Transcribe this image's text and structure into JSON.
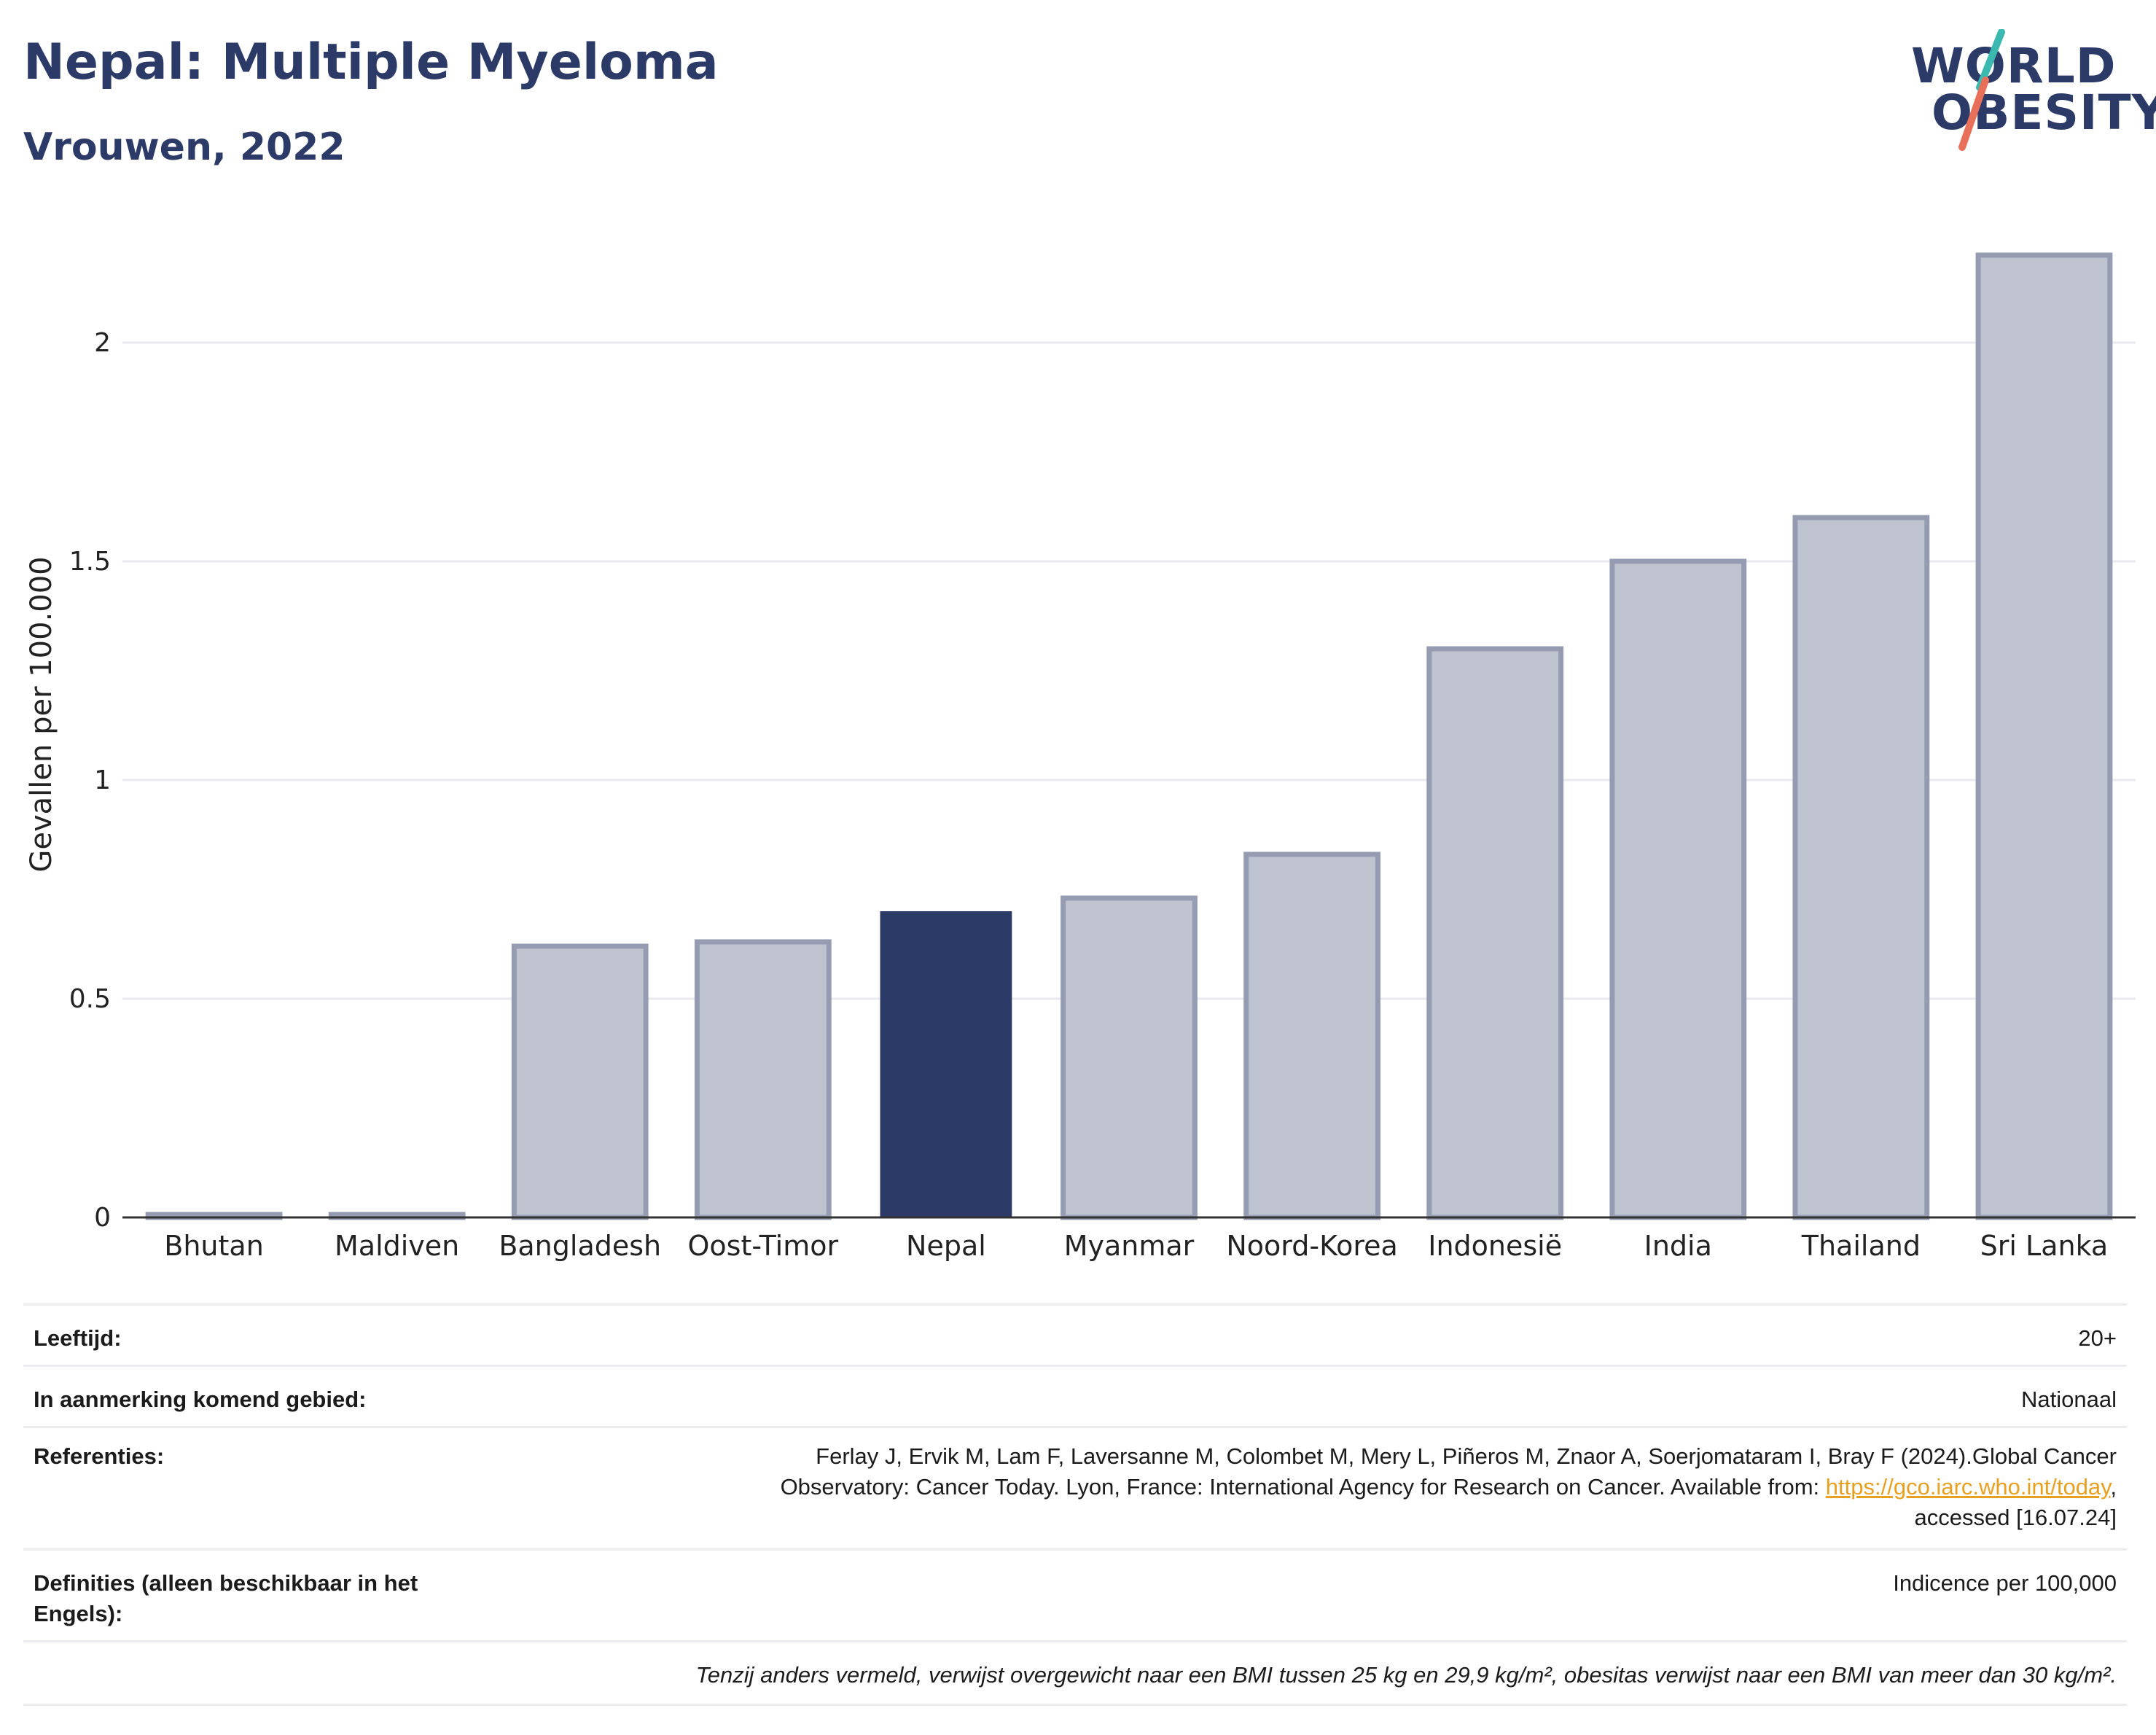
{
  "header": {
    "title": "Nepal: Multiple Myeloma",
    "subtitle": "Vrouwen, 2022",
    "logo_line1": "WORLD",
    "logo_line2": "OBESITY",
    "logo_colors": {
      "navy": "#2b3a67",
      "teal": "#3bb8b0",
      "coral": "#e8705a"
    }
  },
  "chart_data": {
    "type": "bar",
    "categories": [
      "Bhutan",
      "Maldiven",
      "Bangladesh",
      "Oost-Timor",
      "Nepal",
      "Myanmar",
      "Noord-Korea",
      "Indonesië",
      "India",
      "Thailand",
      "Sri Lanka"
    ],
    "values": [
      0.005,
      0.005,
      0.62,
      0.63,
      0.7,
      0.73,
      0.83,
      1.3,
      1.5,
      1.6,
      2.2
    ],
    "highlight": "Nepal",
    "ylabel": "Gevallen per 100.000",
    "ylim": [
      0,
      2.3
    ],
    "yticks": [
      0,
      0.5,
      1,
      1.5,
      2
    ],
    "ytick_labels": [
      "0",
      "0.5",
      "1",
      "1.5",
      "2"
    ],
    "grid": true,
    "colors": {
      "bar": "#bfc3cf",
      "bar_edge": "#959cb2",
      "highlight": "#2b3a67",
      "grid": "#e9eaee",
      "axis": "#333333"
    }
  },
  "meta": {
    "age_label": "Leeftijd:",
    "age_value": "20+",
    "area_label": "In aanmerking komend gebied:",
    "area_value": "Nationaal",
    "ref_label": "Referenties:",
    "ref_line1": "Ferlay J, Ervik M, Lam F, Laversanne M, Colombet M, Mery L, Piñeros M, Znaor A, Soerjomataram I, Bray F (2024).Global Cancer",
    "ref_line2": "Observatory: Cancer Today. Lyon, France: International Agency for Research on Cancer. Available from: ",
    "ref_link": "https://gco.iarc.who.int/today",
    "ref_line2_end": ",",
    "ref_line3": "accessed [16.07.24]",
    "def_label_line1": "Definities (alleen beschikbaar in het",
    "def_label_line2": "Engels):",
    "def_value": "Indicence per 100,000",
    "footnote": "Tenzij anders vermeld, verwijst overgewicht naar een BMI tussen 25 kg en 29,9 kg/m², obesitas verwijst naar een BMI van meer dan 30 kg/m²."
  }
}
